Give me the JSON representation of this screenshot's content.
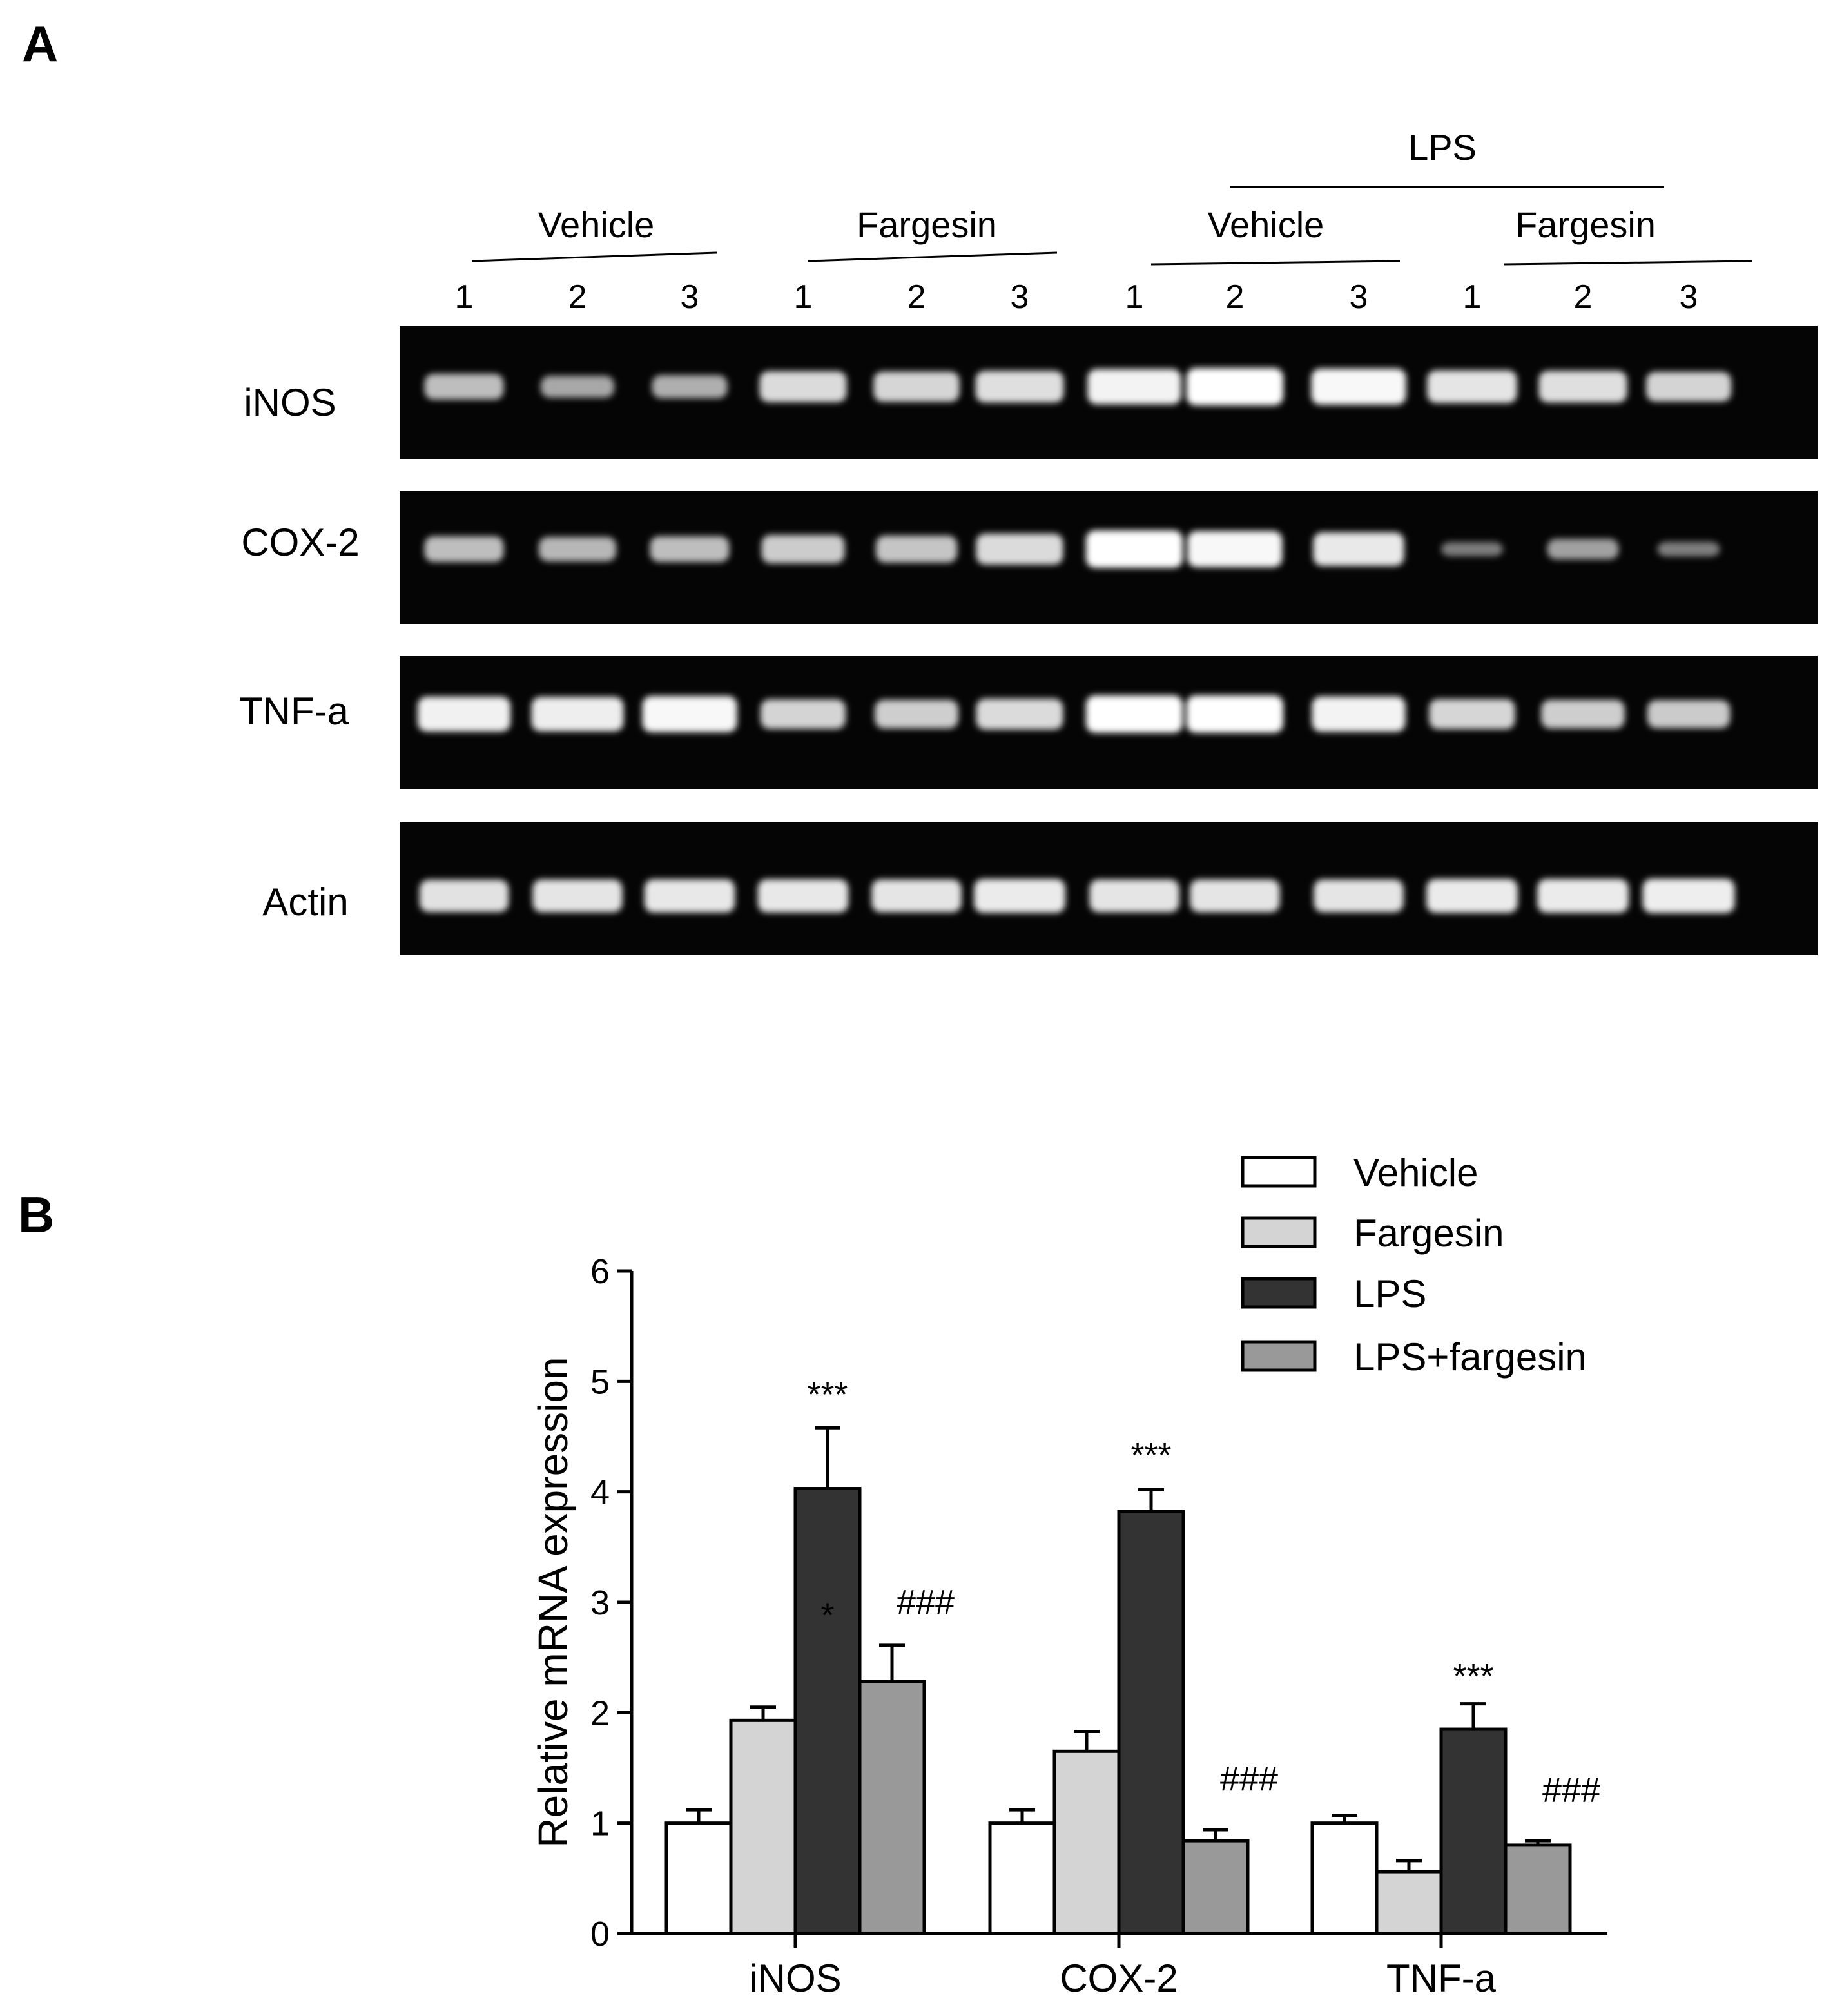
{
  "panels": {
    "a": "A",
    "b": "B"
  },
  "gel": {
    "top_group": "LPS",
    "groups": [
      "Vehicle",
      "Fargesin",
      "Vehicle",
      "Fargesin"
    ],
    "lane_numbers": [
      "1",
      "2",
      "3",
      "1",
      "2",
      "3",
      "1",
      "2",
      "3",
      "1",
      "2",
      "3"
    ],
    "rows": [
      {
        "label": "iNOS",
        "bands": [
          0.55,
          0.4,
          0.45,
          0.75,
          0.72,
          0.78,
          0.92,
          1.0,
          0.95,
          0.82,
          0.78,
          0.7
        ]
      },
      {
        "label": "COX-2",
        "bands": [
          0.55,
          0.5,
          0.55,
          0.65,
          0.6,
          0.75,
          1.0,
          0.95,
          0.85,
          0.1,
          0.35,
          0.12
        ]
      },
      {
        "label": "TNF-a",
        "bands": [
          0.9,
          0.88,
          0.95,
          0.7,
          0.66,
          0.75,
          1.0,
          1.0,
          0.92,
          0.72,
          0.66,
          0.64
        ]
      },
      {
        "label": "Actin",
        "bands": [
          0.8,
          0.82,
          0.84,
          0.84,
          0.82,
          0.86,
          0.82,
          0.82,
          0.82,
          0.86,
          0.86,
          0.88
        ]
      }
    ]
  },
  "chart_data": {
    "type": "bar",
    "ylabel": "Relative mRNA expression",
    "ylim": [
      0,
      6
    ],
    "yticks": [
      "0",
      "1",
      "2",
      "3",
      "4",
      "5",
      "6"
    ],
    "categories": [
      "iNOS",
      "COX-2",
      "TNF-a"
    ],
    "series": [
      {
        "name": "Vehicle",
        "color": "#ffffff",
        "values": [
          1.0,
          1.0,
          1.0
        ],
        "errors": [
          0.12,
          0.12,
          0.07
        ]
      },
      {
        "name": "Fargesin",
        "color": "#d4d4d4",
        "values": [
          1.93,
          1.65,
          0.56
        ],
        "errors": [
          0.12,
          0.18,
          0.1
        ]
      },
      {
        "name": "LPS",
        "color": "#333333",
        "values": [
          4.03,
          3.82,
          1.85
        ],
        "errors": [
          0.55,
          0.2,
          0.23
        ]
      },
      {
        "name": "LPS+fargesin",
        "color": "#999999",
        "values": [
          2.28,
          0.84,
          0.8
        ],
        "errors": [
          0.33,
          0.1,
          0.04
        ]
      }
    ],
    "legend_position": "top-right",
    "annotations": [
      {
        "category": 0,
        "series": 2,
        "text": "***",
        "y": 4.95
      },
      {
        "category": 0,
        "series": 2,
        "text": "*",
        "y": 2.95
      },
      {
        "category": 0,
        "series": 3,
        "text": "###",
        "y": 3.0
      },
      {
        "category": 1,
        "series": 2,
        "text": "***",
        "y": 4.4
      },
      {
        "category": 1,
        "series": 3,
        "text": "###",
        "y": 1.4
      },
      {
        "category": 2,
        "series": 2,
        "text": "***",
        "y": 2.4
      },
      {
        "category": 2,
        "series": 3,
        "text": "###",
        "y": 1.3
      }
    ]
  }
}
